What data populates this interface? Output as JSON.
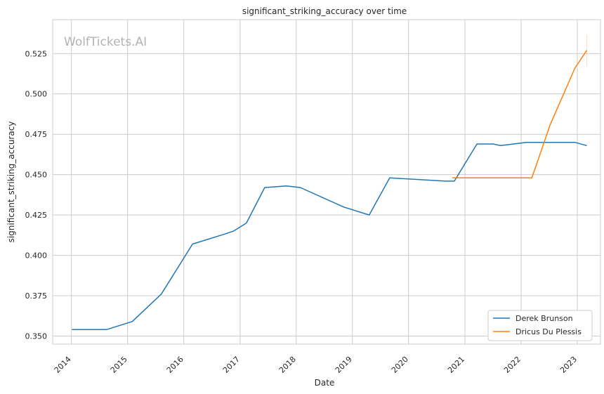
{
  "chart_data": {
    "type": "line",
    "title": "significant_striking_accuracy over time",
    "xlabel": "Date",
    "ylabel": "significant_striking_accuracy",
    "watermark": "WolfTickets.AI",
    "x_ticks": [
      "2014",
      "2015",
      "2016",
      "2017",
      "2018",
      "2019",
      "2020",
      "2021",
      "2022",
      "2023"
    ],
    "y_ticks": [
      "0.350",
      "0.375",
      "0.400",
      "0.425",
      "0.450",
      "0.475",
      "0.500",
      "0.525"
    ],
    "xlim": [
      "2013-09-01",
      "2023-06-01"
    ],
    "ylim": [
      0.345,
      0.546
    ],
    "grid": true,
    "legend_position": "lower-right",
    "series": [
      {
        "name": "Derek Brunson",
        "color": "#1f77b4",
        "points": [
          [
            "2014-01-04",
            0.354
          ],
          [
            "2014-08-16",
            0.354
          ],
          [
            "2015-01-31",
            0.359
          ],
          [
            "2015-08-08",
            0.376
          ],
          [
            "2016-02-27",
            0.407
          ],
          [
            "2016-09-17",
            0.413
          ],
          [
            "2016-11-19",
            0.415
          ],
          [
            "2017-02-11",
            0.42
          ],
          [
            "2017-06-10",
            0.442
          ],
          [
            "2017-10-28",
            0.443
          ],
          [
            "2018-01-27",
            0.442
          ],
          [
            "2018-11-03",
            0.43
          ],
          [
            "2019-04-20",
            0.425
          ],
          [
            "2019-08-31",
            0.448
          ],
          [
            "2020-08-29",
            0.446
          ],
          [
            "2020-10-24",
            0.446
          ],
          [
            "2021-03-20",
            0.469
          ],
          [
            "2021-07-03",
            0.469
          ],
          [
            "2021-08-21",
            0.468
          ],
          [
            "2022-02-05",
            0.47
          ],
          [
            "2022-12-17",
            0.47
          ],
          [
            "2023-03-04",
            0.468
          ]
        ]
      },
      {
        "name": "Dricus Du Plessis",
        "color": "#ff7f0e",
        "points": [
          [
            "2020-10-11",
            0.448
          ],
          [
            "2021-07-10",
            0.448
          ],
          [
            "2022-03-12",
            0.448
          ],
          [
            "2022-07-09",
            0.481
          ],
          [
            "2022-12-17",
            0.516
          ],
          [
            "2023-03-04",
            0.527
          ]
        ]
      }
    ]
  }
}
